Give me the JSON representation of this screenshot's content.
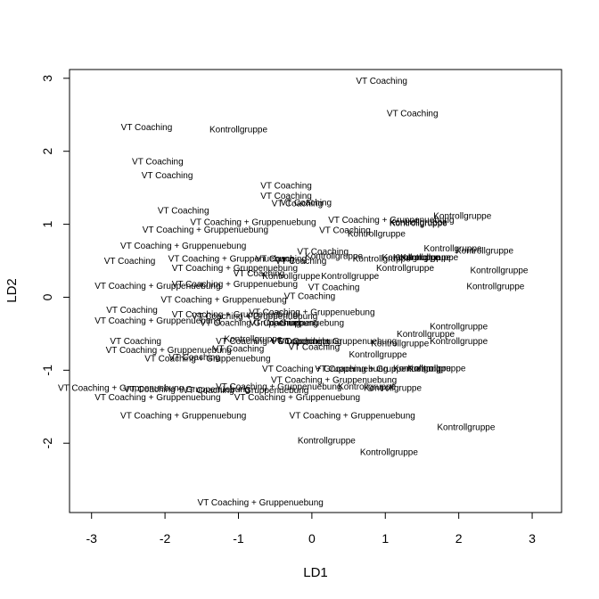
{
  "chart_data": {
    "type": "scatter",
    "title": "",
    "xlabel": "LD1",
    "ylabel": "LD2",
    "xlim": [
      -3.3,
      3.4
    ],
    "ylim": [
      -2.95,
      3.12
    ],
    "xticks": [
      -3,
      -2,
      -1,
      0,
      1,
      2,
      3
    ],
    "yticks": [
      -2,
      -1,
      0,
      1,
      2,
      3
    ],
    "xtick_labels": [
      "-3",
      "-2",
      "-1",
      "0",
      "1",
      "2",
      "3"
    ],
    "ytick_labels": [
      "-2",
      "-1",
      "0",
      "1",
      "2",
      "3"
    ],
    "grid": false,
    "legend": "none",
    "points": [
      {
        "x": 0.95,
        "y": 2.97,
        "label": "VT Coaching"
      },
      {
        "x": 1.37,
        "y": 2.52,
        "label": "VT Coaching"
      },
      {
        "x": -2.25,
        "y": 2.33,
        "label": "VT Coaching"
      },
      {
        "x": -1.0,
        "y": 2.3,
        "label": "Kontrollgruppe"
      },
      {
        "x": -2.1,
        "y": 1.86,
        "label": "VT Coaching"
      },
      {
        "x": -1.97,
        "y": 1.67,
        "label": "VT Coaching"
      },
      {
        "x": -0.35,
        "y": 1.53,
        "label": "VT Coaching"
      },
      {
        "x": -0.35,
        "y": 1.39,
        "label": "VT Coaching"
      },
      {
        "x": -0.08,
        "y": 1.3,
        "label": "VT Coaching"
      },
      {
        "x": -0.2,
        "y": 1.29,
        "label": "VT Coaching"
      },
      {
        "x": -1.75,
        "y": 1.19,
        "label": "VT Coaching"
      },
      {
        "x": 2.05,
        "y": 1.12,
        "label": "Kontrollgruppe"
      },
      {
        "x": 1.08,
        "y": 1.06,
        "label": "VT Coaching + Gruppenuebung"
      },
      {
        "x": -0.8,
        "y": 1.03,
        "label": "VT Coaching + Gruppenuebung"
      },
      {
        "x": 1.45,
        "y": 1.03,
        "label": "Kontrollgruppe"
      },
      {
        "x": 1.45,
        "y": 1.02,
        "label": "Kontrollgruppe"
      },
      {
        "x": 0.45,
        "y": 0.92,
        "label": "VT Coaching"
      },
      {
        "x": 0.88,
        "y": 0.87,
        "label": "Kontrollgruppe"
      },
      {
        "x": -1.45,
        "y": 0.93,
        "label": "VT Coaching + Gruppenuebung"
      },
      {
        "x": -1.75,
        "y": 0.71,
        "label": "VT Coaching + Gruppenuebung"
      },
      {
        "x": 1.92,
        "y": 0.67,
        "label": "Kontrollgruppe"
      },
      {
        "x": 2.35,
        "y": 0.64,
        "label": "Kontrollgruppe"
      },
      {
        "x": 0.15,
        "y": 0.63,
        "label": "VT Coaching"
      },
      {
        "x": 0.3,
        "y": 0.57,
        "label": "Kontrollgruppe"
      },
      {
        "x": 0.95,
        "y": 0.53,
        "label": "Kontrollgruppe"
      },
      {
        "x": 1.35,
        "y": 0.55,
        "label": "Kontrollgruppe"
      },
      {
        "x": 1.6,
        "y": 0.55,
        "label": "Kontrollgruppe"
      },
      {
        "x": 1.5,
        "y": 0.55,
        "label": "Kontrollgruppe"
      },
      {
        "x": -1.1,
        "y": 0.53,
        "label": "VT Coaching + Gruppenuebung"
      },
      {
        "x": -0.42,
        "y": 0.53,
        "label": "VT Coaching"
      },
      {
        "x": -0.15,
        "y": 0.5,
        "label": "VT Coaching"
      },
      {
        "x": -2.48,
        "y": 0.5,
        "label": "VT Coaching"
      },
      {
        "x": 1.27,
        "y": 0.4,
        "label": "Kontrollgruppe"
      },
      {
        "x": -1.05,
        "y": 0.4,
        "label": "VT Coaching + Gruppenuebung"
      },
      {
        "x": -0.72,
        "y": 0.33,
        "label": "VT Coaching"
      },
      {
        "x": -0.28,
        "y": 0.29,
        "label": "Kontrollgruppe"
      },
      {
        "x": 0.52,
        "y": 0.29,
        "label": "Kontrollgruppe"
      },
      {
        "x": 2.55,
        "y": 0.37,
        "label": "Kontrollgruppe"
      },
      {
        "x": -1.05,
        "y": 0.18,
        "label": "VT Coaching + Gruppenuebung"
      },
      {
        "x": -2.1,
        "y": 0.16,
        "label": "VT Coaching + Gruppenuebung"
      },
      {
        "x": 0.3,
        "y": 0.14,
        "label": "VT Coaching"
      },
      {
        "x": 2.5,
        "y": 0.15,
        "label": "Kontrollgruppe"
      },
      {
        "x": -0.03,
        "y": 0.02,
        "label": "VT Coaching"
      },
      {
        "x": -1.2,
        "y": -0.03,
        "label": "VT Coaching + Gruppenuebung"
      },
      {
        "x": -2.45,
        "y": -0.17,
        "label": "VT Coaching"
      },
      {
        "x": 0.0,
        "y": -0.2,
        "label": "VT Coaching + Gruppenuebung"
      },
      {
        "x": -1.05,
        "y": -0.23,
        "label": "VT Coaching + Gruppenuebung"
      },
      {
        "x": -0.78,
        "y": -0.26,
        "label": "VT Coaching + Gruppenuebung"
      },
      {
        "x": -2.1,
        "y": -0.32,
        "label": "VT Coaching + Gruppenuebung"
      },
      {
        "x": -0.72,
        "y": -0.35,
        "label": "VT Coaching Gruppenuebung"
      },
      {
        "x": -0.5,
        "y": -0.35,
        "label": "VT Coaching"
      },
      {
        "x": 0.0,
        "y": -0.35,
        "label": "Gruppenuebung"
      },
      {
        "x": 2.0,
        "y": -0.4,
        "label": "Kontrollgruppe"
      },
      {
        "x": 1.55,
        "y": -0.5,
        "label": "Kontrollgruppe"
      },
      {
        "x": -0.8,
        "y": -0.57,
        "label": "Kontrollgruppe"
      },
      {
        "x": -0.45,
        "y": -0.6,
        "label": "VT Coaching + Gruppenuebung"
      },
      {
        "x": -0.1,
        "y": -0.6,
        "label": "VT Coaching"
      },
      {
        "x": 0.3,
        "y": -0.6,
        "label": "VT Coaching + Gruppenuebung"
      },
      {
        "x": 1.2,
        "y": -0.63,
        "label": "Kontrollgruppe"
      },
      {
        "x": 2.0,
        "y": -0.6,
        "label": "Kontrollgruppe"
      },
      {
        "x": -2.4,
        "y": -0.6,
        "label": "VT Coaching"
      },
      {
        "x": 0.03,
        "y": -0.68,
        "label": "VT Coaching"
      },
      {
        "x": -1.0,
        "y": -0.7,
        "label": "VT Coaching"
      },
      {
        "x": -1.95,
        "y": -0.72,
        "label": "VT Coaching + Gruppenuebung"
      },
      {
        "x": 0.9,
        "y": -0.78,
        "label": "Kontrollgruppe"
      },
      {
        "x": -1.6,
        "y": -0.82,
        "label": "VT Coaching"
      },
      {
        "x": -1.42,
        "y": -0.84,
        "label": "VT Coaching + Gruppenuebung"
      },
      {
        "x": 0.18,
        "y": -0.98,
        "label": "VT Coaching + Gruppenuebung"
      },
      {
        "x": 0.9,
        "y": -0.98,
        "label": "VT Coaching + Gruppenuebung"
      },
      {
        "x": 1.5,
        "y": -0.97,
        "label": "Kontrollgruppe"
      },
      {
        "x": 1.7,
        "y": -0.97,
        "label": "Kontrollgruppe"
      },
      {
        "x": 0.3,
        "y": -1.13,
        "label": "VT Coaching + Gruppenuebung"
      },
      {
        "x": 1.1,
        "y": -1.24,
        "label": "Kontrollgruppe"
      },
      {
        "x": -2.6,
        "y": -1.24,
        "label": "VT Coaching + Gruppenuebung"
      },
      {
        "x": -1.7,
        "y": -1.26,
        "label": "VT Coaching + Gruppenuebung"
      },
      {
        "x": -0.45,
        "y": -1.22,
        "label": "VT Coaching + Gruppenuebung"
      },
      {
        "x": -0.9,
        "y": -1.27,
        "label": "VT Coaching + Gruppenuebung"
      },
      {
        "x": 0.75,
        "y": -1.22,
        "label": "Kontrollgruppe"
      },
      {
        "x": -2.1,
        "y": -1.37,
        "label": "VT Coaching + Gruppenuebung"
      },
      {
        "x": -0.2,
        "y": -1.37,
        "label": "VT Coaching + Gruppenuebung"
      },
      {
        "x": -1.75,
        "y": -1.62,
        "label": "VT Coaching + Gruppenuebung"
      },
      {
        "x": 0.55,
        "y": -1.62,
        "label": "VT Coaching + Gruppenuebung"
      },
      {
        "x": 2.1,
        "y": -1.78,
        "label": "Kontrollgruppe"
      },
      {
        "x": 0.2,
        "y": -1.96,
        "label": "Kontrollgruppe"
      },
      {
        "x": 1.05,
        "y": -2.12,
        "label": "Kontrollgruppe"
      },
      {
        "x": -0.7,
        "y": -2.81,
        "label": "VT Coaching + Gruppenuebung"
      }
    ]
  }
}
